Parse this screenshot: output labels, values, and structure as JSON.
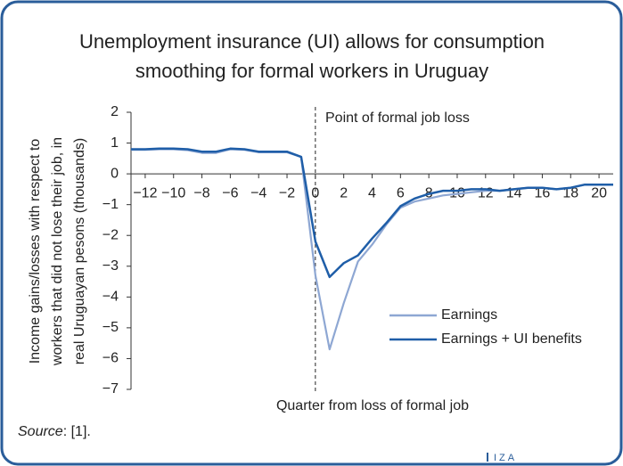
{
  "chart_data": {
    "type": "line",
    "title": [
      "Unemployment insurance (UI) allows for consumption",
      "smoothing for formal workers in Uruguay"
    ],
    "y_label": [
      "Income gains/losses with respect to",
      "workers that did not lose their job, in",
      "real Uruguayan pesons (thousands)"
    ],
    "x_label": "Quarter from loss of formal job",
    "annotation": "Point of formal job loss",
    "source_label": "Source",
    "source_text": ": [1].",
    "logo": "IZA",
    "x": [
      -13,
      -12,
      -11,
      -10,
      -9,
      -8,
      -7,
      -6,
      -5,
      -4,
      -3,
      -2,
      -1,
      0,
      1,
      2,
      3,
      4,
      5,
      6,
      7,
      8,
      9,
      10,
      11,
      12,
      13,
      14,
      15,
      16,
      17,
      18,
      19,
      20,
      21
    ],
    "series": [
      {
        "name": "Earnings",
        "color": "#8ea7d3",
        "values": [
          0.78,
          0.78,
          0.8,
          0.8,
          0.77,
          0.68,
          0.68,
          0.8,
          0.78,
          0.7,
          0.7,
          0.7,
          0.55,
          -3.3,
          -5.7,
          -4.2,
          -2.85,
          -2.3,
          -1.65,
          -1.1,
          -0.9,
          -0.8,
          -0.7,
          -0.65,
          -0.6,
          -0.55,
          -0.55,
          -0.5,
          -0.45,
          -0.45,
          -0.5,
          -0.45,
          -0.35,
          -0.35,
          -0.35
        ]
      },
      {
        "name": "Earnings + UI benefits",
        "color": "#1f5ea8",
        "values": [
          0.8,
          0.8,
          0.82,
          0.82,
          0.8,
          0.72,
          0.72,
          0.82,
          0.8,
          0.72,
          0.72,
          0.72,
          0.55,
          -2.2,
          -3.35,
          -2.9,
          -2.65,
          -2.1,
          -1.6,
          -1.05,
          -0.8,
          -0.65,
          -0.55,
          -0.55,
          -0.5,
          -0.5,
          -0.55,
          -0.5,
          -0.45,
          -0.45,
          -0.5,
          -0.45,
          -0.35,
          -0.35,
          -0.35
        ]
      }
    ],
    "xlim": [
      -13,
      21
    ],
    "ylim": [
      -7,
      2
    ],
    "xticks": [
      {
        "value": -12,
        "label": "−12"
      },
      {
        "value": -10,
        "label": "−10"
      },
      {
        "value": -8,
        "label": "−8"
      },
      {
        "value": -6,
        "label": "−6"
      },
      {
        "value": -4,
        "label": "−4"
      },
      {
        "value": -2,
        "label": "−2"
      },
      0,
      2,
      4,
      6,
      8,
      10,
      12,
      14,
      16,
      18,
      20
    ],
    "yticks": [
      {
        "value": -7,
        "label": "−7"
      },
      {
        "value": -6,
        "label": "−6"
      },
      {
        "value": -5,
        "label": "−5"
      },
      {
        "value": -4,
        "label": "−4"
      },
      {
        "value": -3,
        "label": "−3"
      },
      {
        "value": -2,
        "label": "−2"
      },
      {
        "value": -1,
        "label": "−1"
      },
      0,
      1,
      2
    ],
    "grid": false,
    "legend": "lower right"
  }
}
